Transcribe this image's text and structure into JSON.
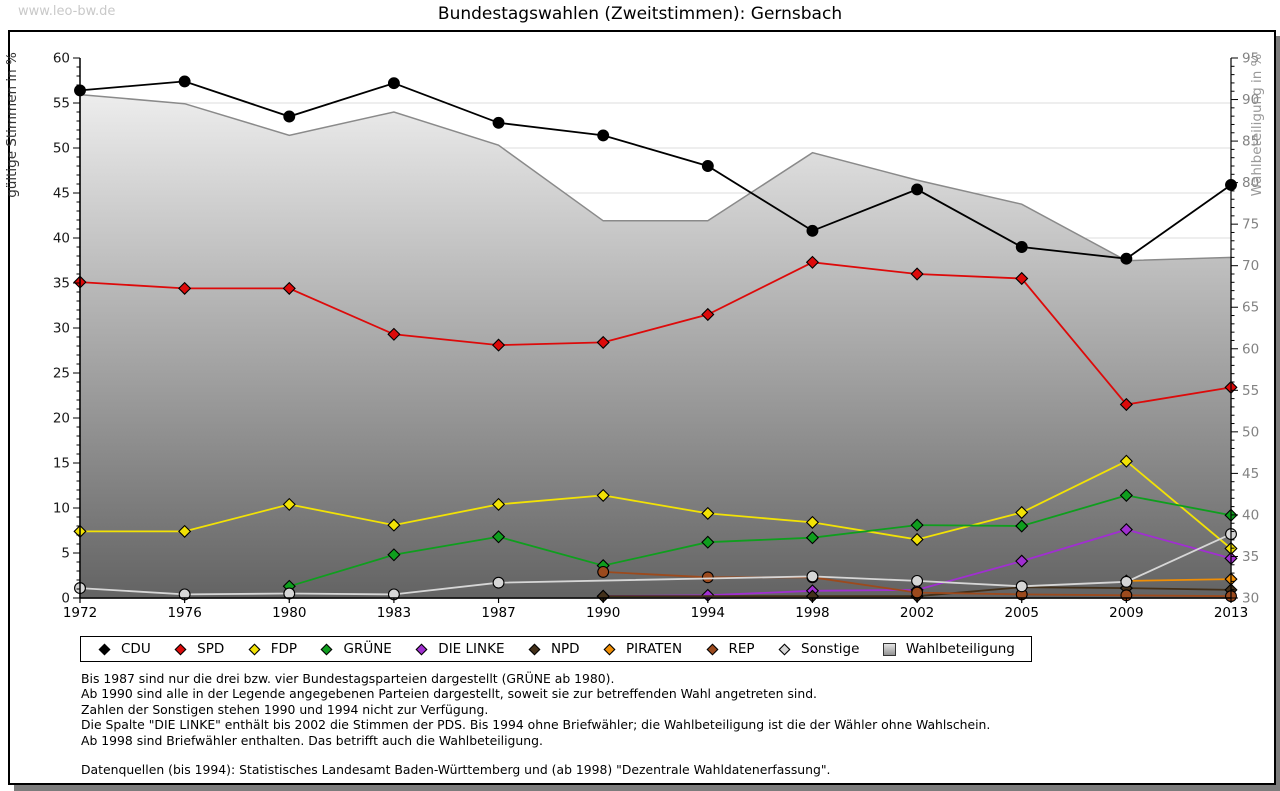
{
  "watermark": "www.leo-bw.de",
  "title": "Bundestagswahlen (Zweitstimmen): Gernsbach",
  "axes": {
    "left_label": "gültige Stimmen in %",
    "right_label": "Wahlbeteiligung in %"
  },
  "chart_data": {
    "type": "line",
    "title": "Bundestagswahlen (Zweitstimmen): Gernsbach",
    "x": [
      1972,
      1976,
      1980,
      1983,
      1987,
      1990,
      1994,
      1998,
      2002,
      2005,
      2009,
      2013
    ],
    "ylabel_left": "gültige Stimmen in %",
    "ylabel_right": "Wahlbeteiligung in %",
    "ylim_left": [
      0,
      60
    ],
    "ylim_right": [
      30,
      95
    ],
    "grid": true,
    "legend_position": "bottom",
    "series": [
      {
        "name": "CDU",
        "color": "#000000",
        "marker": "circle",
        "axis": "left",
        "values": [
          56.4,
          57.4,
          53.5,
          57.2,
          52.8,
          51.4,
          48.0,
          40.8,
          45.4,
          39.0,
          37.7,
          45.9
        ]
      },
      {
        "name": "SPD",
        "color": "#dd0a0a",
        "marker": "diamond",
        "axis": "left",
        "values": [
          35.1,
          34.4,
          34.4,
          29.3,
          28.1,
          28.4,
          31.5,
          37.3,
          36.0,
          35.5,
          21.5,
          23.4
        ]
      },
      {
        "name": "FDP",
        "color": "#f2e205",
        "marker": "diamond",
        "axis": "left",
        "values": [
          7.4,
          7.4,
          10.4,
          8.1,
          10.4,
          11.4,
          9.4,
          8.4,
          6.5,
          9.5,
          15.2,
          5.5
        ]
      },
      {
        "name": "GRÜNE",
        "color": "#0f9e1e",
        "marker": "diamond",
        "axis": "left",
        "values": [
          null,
          null,
          1.3,
          4.8,
          6.8,
          3.6,
          6.2,
          6.7,
          8.1,
          8.0,
          11.4,
          9.2
        ]
      },
      {
        "name": "DIE LINKE",
        "color": "#a02fd0",
        "marker": "diamond",
        "axis": "left",
        "values": [
          null,
          null,
          null,
          null,
          null,
          0.2,
          0.3,
          0.8,
          0.9,
          4.1,
          7.6,
          4.4
        ]
      },
      {
        "name": "NPD",
        "color": "#43301a",
        "marker": "diamond",
        "axis": "left",
        "values": [
          null,
          null,
          null,
          null,
          null,
          0.2,
          null,
          0.2,
          0.2,
          1.2,
          1.1,
          0.9
        ]
      },
      {
        "name": "PIRATEN",
        "color": "#f08e05",
        "marker": "diamond",
        "axis": "left",
        "values": [
          null,
          null,
          null,
          null,
          null,
          null,
          null,
          null,
          null,
          null,
          1.9,
          2.1
        ]
      },
      {
        "name": "REP",
        "color": "#9c4a1d",
        "marker": "circle",
        "axis": "left",
        "values": [
          null,
          null,
          null,
          null,
          null,
          2.9,
          2.3,
          2.3,
          0.6,
          0.4,
          0.3,
          0.2
        ]
      },
      {
        "name": "Sonstige",
        "color": "#d6d6d6",
        "marker": "circle",
        "axis": "left",
        "values": [
          1.1,
          0.4,
          0.5,
          0.4,
          1.7,
          null,
          null,
          2.4,
          1.9,
          1.3,
          1.8,
          7.1
        ]
      },
      {
        "name": "Wahlbeteiligung",
        "color": "#8a8a8a",
        "type": "area",
        "axis": "right",
        "values": [
          90.6,
          89.5,
          85.7,
          88.5,
          84.5,
          75.4,
          75.4,
          83.6,
          80.3,
          77.4,
          70.6,
          71.0
        ]
      }
    ]
  },
  "footnotes": [
    "Bis 1987 sind nur die drei bzw. vier Bundestagsparteien dargestellt (GRÜNE ab 1980).",
    "Ab 1990 sind alle in der Legende angegebenen Parteien dargestellt, soweit sie zur betreffenden Wahl angetreten sind.",
    "Zahlen der Sonstigen stehen 1990 und 1994 nicht zur Verfügung.",
    "Die Spalte \"DIE LINKE\" enthält bis 2002 die Stimmen der PDS. Bis 1994 ohne Briefwähler; die Wahlbeteiligung ist die der Wähler ohne Wahlschein.",
    "Ab 1998 sind Briefwähler enthalten. Das betrifft auch die Wahlbeteiligung."
  ],
  "source": "Datenquellen (bis 1994): Statistisches Landesamt Baden-Württemberg und (ab 1998) \"Dezentrale Wahldatenerfassung\"."
}
